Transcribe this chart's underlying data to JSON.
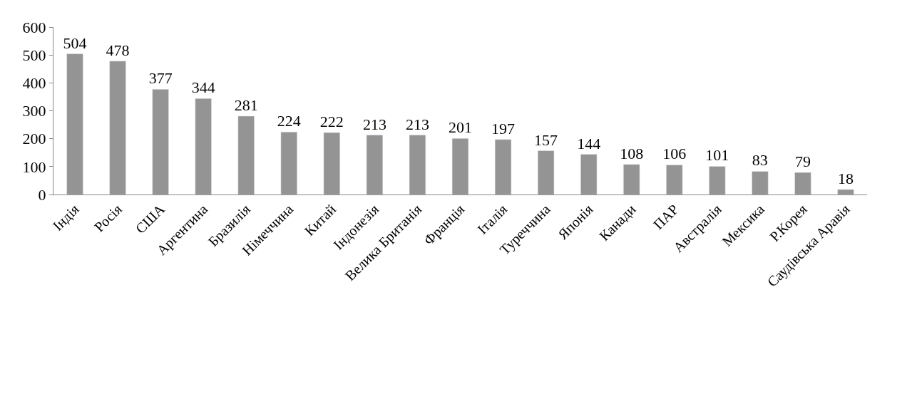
{
  "chart_data": {
    "type": "bar",
    "categories": [
      "Індія",
      "Росія",
      "США",
      "Аргентина",
      "Бразилія",
      "Німеччина",
      "Китай",
      "Індонезія",
      "Велика Британія",
      "Франція",
      "Італія",
      "Туреччина",
      "Японія",
      "Канади",
      "ПАР",
      "Австралія",
      "Мексика",
      "Р.Корея",
      "Саудівська Аравія"
    ],
    "values": [
      504,
      478,
      377,
      344,
      281,
      224,
      222,
      213,
      213,
      201,
      197,
      157,
      144,
      108,
      106,
      101,
      83,
      79,
      18
    ],
    "color": "#949494",
    "ylim": [
      0,
      600
    ],
    "yticks": [
      0,
      100,
      200,
      300,
      400,
      500,
      600
    ],
    "data_labels": true,
    "legend": false
  }
}
